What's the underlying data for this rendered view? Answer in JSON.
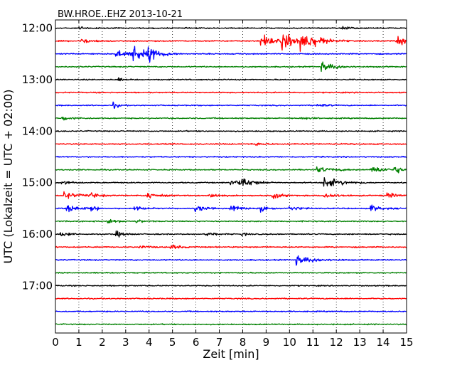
{
  "chart_data": {
    "type": "line",
    "subtype": "helicorder",
    "title": "BW.HROE..EHZ 2013-10-21",
    "xlabel": "Zeit  [min]",
    "ylabel": "UTC (Lokalzeit = UTC + 02:00)",
    "xlim": [
      0,
      15
    ],
    "x_ticks": [
      0,
      1,
      2,
      3,
      4,
      5,
      6,
      7,
      8,
      9,
      10,
      11,
      12,
      13,
      14,
      15
    ],
    "y_tick_labels": [
      "12:00",
      "13:00",
      "14:00",
      "15:00",
      "16:00",
      "17:00"
    ],
    "grid": "vertical dotted at each minute",
    "row_interval_minutes": 15,
    "trace_colors": [
      "#000000",
      "#ff0000",
      "#0000ff",
      "#008000"
    ],
    "rows": [
      {
        "start": "12:00",
        "color": "#000000",
        "events": [
          {
            "t": 1.0,
            "a": 0.4,
            "d": 0.3
          },
          {
            "t": 12.2,
            "a": 0.4,
            "d": 0.3
          }
        ]
      },
      {
        "start": "12:15",
        "color": "#ff0000",
        "events": [
          {
            "t": 1.1,
            "a": 0.5,
            "d": 0.4
          },
          {
            "t": 8.8,
            "a": 1.3,
            "d": 0.5
          },
          {
            "t": 9.7,
            "a": 1.6,
            "d": 0.6
          },
          {
            "t": 10.5,
            "a": 1.8,
            "d": 0.7
          },
          {
            "t": 14.6,
            "a": 1.0,
            "d": 0.4
          }
        ]
      },
      {
        "start": "12:30",
        "color": "#0000ff",
        "events": [
          {
            "t": 2.6,
            "a": 0.8,
            "d": 0.5
          },
          {
            "t": 3.2,
            "a": 1.8,
            "d": 0.7
          },
          {
            "t": 4.0,
            "a": 0.9,
            "d": 0.4
          }
        ]
      },
      {
        "start": "12:45",
        "color": "#008000",
        "events": [
          {
            "t": 11.4,
            "a": 1.0,
            "d": 0.5
          }
        ]
      },
      {
        "start": "13:00",
        "color": "#000000",
        "events": [
          {
            "t": 2.7,
            "a": 0.3,
            "d": 0.2
          }
        ]
      },
      {
        "start": "13:15",
        "color": "#ff0000",
        "events": []
      },
      {
        "start": "13:30",
        "color": "#0000ff",
        "events": [
          {
            "t": 2.5,
            "a": 0.6,
            "d": 0.2
          },
          {
            "t": 11.2,
            "a": 0.4,
            "d": 0.3
          }
        ]
      },
      {
        "start": "13:45",
        "color": "#008000",
        "events": [
          {
            "t": 0.3,
            "a": 0.4,
            "d": 0.4
          },
          {
            "t": 10.5,
            "a": 0.3,
            "d": 0.3
          }
        ]
      },
      {
        "start": "14:00",
        "color": "#000000",
        "events": []
      },
      {
        "start": "14:15",
        "color": "#ff0000",
        "events": [
          {
            "t": 8.6,
            "a": 0.3,
            "d": 0.3
          }
        ]
      },
      {
        "start": "14:30",
        "color": "#0000ff",
        "events": []
      },
      {
        "start": "14:45",
        "color": "#008000",
        "events": [
          {
            "t": 11.2,
            "a": 0.6,
            "d": 0.6
          },
          {
            "t": 13.5,
            "a": 0.7,
            "d": 0.6
          },
          {
            "t": 14.5,
            "a": 0.6,
            "d": 0.4
          }
        ]
      },
      {
        "start": "15:00",
        "color": "#000000",
        "events": [
          {
            "t": 0.3,
            "a": 0.5,
            "d": 0.3
          },
          {
            "t": 7.5,
            "a": 0.8,
            "d": 0.5
          },
          {
            "t": 8.0,
            "a": 0.8,
            "d": 0.5
          },
          {
            "t": 11.5,
            "a": 1.3,
            "d": 0.6
          }
        ]
      },
      {
        "start": "15:15",
        "color": "#ff0000",
        "events": [
          {
            "t": 0.4,
            "a": 0.7,
            "d": 0.5
          },
          {
            "t": 1.5,
            "a": 0.6,
            "d": 0.3
          },
          {
            "t": 3.9,
            "a": 0.7,
            "d": 0.4
          },
          {
            "t": 6.6,
            "a": 0.6,
            "d": 0.3
          },
          {
            "t": 9.3,
            "a": 0.8,
            "d": 0.3
          },
          {
            "t": 11.5,
            "a": 0.6,
            "d": 0.4
          },
          {
            "t": 14.2,
            "a": 0.6,
            "d": 0.3
          }
        ]
      },
      {
        "start": "15:30",
        "color": "#0000ff",
        "events": [
          {
            "t": 0.5,
            "a": 0.7,
            "d": 0.5
          },
          {
            "t": 1.5,
            "a": 0.8,
            "d": 0.2
          },
          {
            "t": 3.4,
            "a": 0.6,
            "d": 0.3
          },
          {
            "t": 6.0,
            "a": 0.8,
            "d": 0.3
          },
          {
            "t": 7.5,
            "a": 0.7,
            "d": 0.4
          },
          {
            "t": 8.8,
            "a": 0.8,
            "d": 0.3
          },
          {
            "t": 10.0,
            "a": 0.5,
            "d": 0.4
          },
          {
            "t": 13.5,
            "a": 0.6,
            "d": 0.4
          }
        ]
      },
      {
        "start": "15:45",
        "color": "#008000",
        "events": [
          {
            "t": 2.2,
            "a": 0.5,
            "d": 0.4
          },
          {
            "t": 3.5,
            "a": 0.3,
            "d": 0.3
          }
        ]
      },
      {
        "start": "16:00",
        "color": "#000000",
        "events": [
          {
            "t": 0.2,
            "a": 0.6,
            "d": 0.3
          },
          {
            "t": 2.6,
            "a": 0.6,
            "d": 0.3
          },
          {
            "t": 6.4,
            "a": 0.5,
            "d": 0.3
          },
          {
            "t": 8.0,
            "a": 0.3,
            "d": 0.2
          }
        ]
      },
      {
        "start": "16:15",
        "color": "#ff0000",
        "events": [
          {
            "t": 3.6,
            "a": 0.4,
            "d": 0.3
          },
          {
            "t": 4.9,
            "a": 0.6,
            "d": 0.3
          }
        ]
      },
      {
        "start": "16:30",
        "color": "#0000ff",
        "events": [
          {
            "t": 10.3,
            "a": 0.9,
            "d": 0.7
          }
        ]
      },
      {
        "start": "16:45",
        "color": "#008000",
        "events": []
      },
      {
        "start": "17:00",
        "color": "#000000",
        "events": []
      },
      {
        "start": "17:15",
        "color": "#ff0000",
        "events": []
      },
      {
        "start": "17:30",
        "color": "#0000ff",
        "events": []
      },
      {
        "start": "17:45",
        "color": "#008000",
        "events": []
      }
    ]
  }
}
